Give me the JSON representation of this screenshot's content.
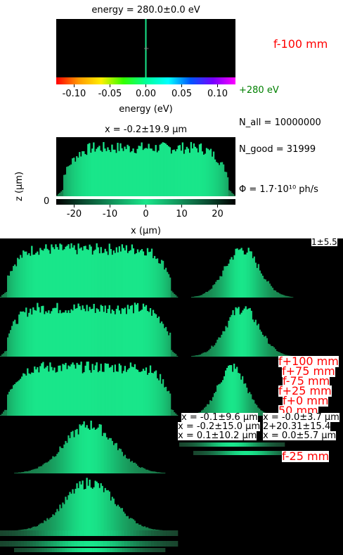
{
  "colors": {
    "accent": "#19e68a",
    "red": "#ff0000",
    "green": "#008000"
  },
  "header": {
    "energy_title": "energy = 280.0±0.0 eV",
    "energy_xlabel": "energy (eV)",
    "x_title": "x = -0.2±19.9 µm",
    "x_xlabel": "x (µm)",
    "z_ylabel": "z (µm)",
    "z_tick": "0"
  },
  "info": {
    "focus": "f-100 mm",
    "energy": "+280 eV",
    "n_all": "N_all = 10000000",
    "n_good": "N_good = 31999",
    "flux": "Φ = 1.7·10¹⁰ ph/s"
  },
  "chart_data": [
    {
      "type": "line",
      "title": "energy = 280.0±0.0 eV",
      "xlabel": "energy (eV)",
      "xlim": [
        -0.125,
        0.125
      ],
      "ticks": [
        "-0.10",
        "-0.05",
        "0.00",
        "0.05",
        "0.10"
      ],
      "tick_values": [
        -0.1,
        -0.05,
        0.0,
        0.05,
        0.1
      ],
      "line_at": 0.0
    },
    {
      "type": "bar",
      "title": "x = -0.2±19.9 µm",
      "xlabel": "x (µm)",
      "xlim": [
        -25,
        25
      ],
      "ticks": [
        "-20",
        "-10",
        "0",
        "10",
        "20"
      ],
      "tick_values": [
        -20,
        -10,
        0,
        10,
        20
      ],
      "shape": "flat",
      "width": 20
    }
  ],
  "stack": {
    "corner_label": "1±5.5",
    "focus_labels": [
      "f+100 mm",
      "f+75 mm",
      "f-75 mm",
      "f+25 mm",
      "f+0 mm",
      "50 mm"
    ],
    "stat_rows": [
      [
        "x = -0.1±9.6 µm",
        "x = -0.0±3.7 µm"
      ],
      [
        "x = -0.2±15.0 µm",
        "2+20.31±15.4"
      ],
      [
        "x = 0.1±10.2 µm",
        "x = 0.0±5.7 µm"
      ]
    ],
    "last_label": "f-25 mm"
  }
}
